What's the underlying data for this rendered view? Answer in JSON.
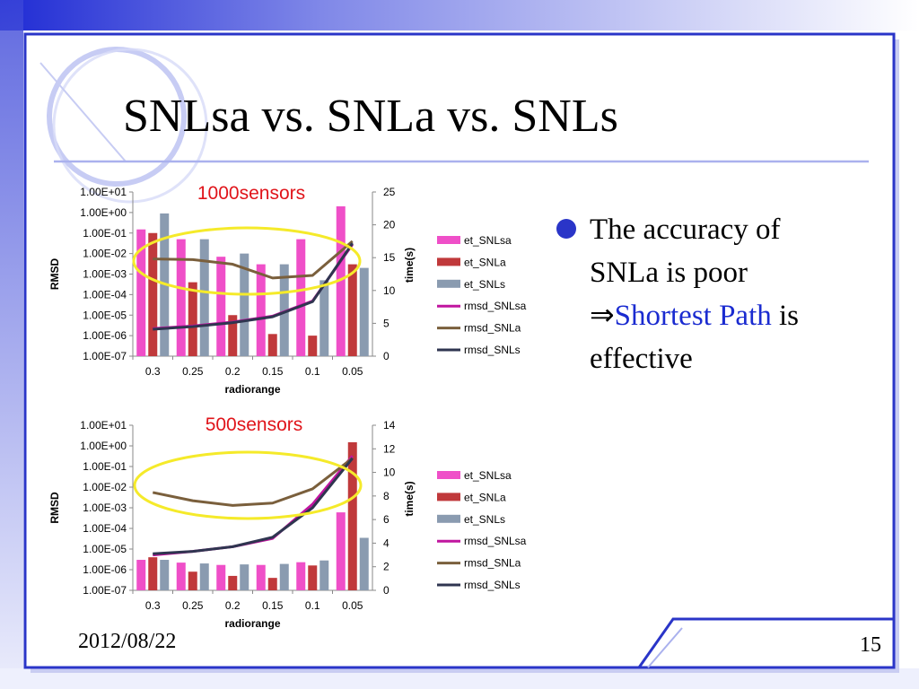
{
  "slide": {
    "title": "SNLsa vs. SNLa vs. SNLs",
    "bullet": {
      "line1": "The accuracy of",
      "line2": "SNLa is poor",
      "arrow": "⇒",
      "highlight": "Shortest Path",
      "after_highlight": " is",
      "line4": "effective"
    },
    "date": "2012/08/22",
    "page_number": "15",
    "accent_color": "#1a2bd0"
  },
  "chart_data": [
    {
      "type": "bar",
      "title": "1000sensors",
      "categories": [
        "0.3",
        "0.25",
        "0.2",
        "0.15",
        "0.1",
        "0.05"
      ],
      "xlabel": "radiorange",
      "ylabel": "RMSD",
      "y2label": "time(s)",
      "y_scale": "log",
      "yticks": [
        "1.00E+01",
        "1.00E+00",
        "1.00E-01",
        "1.00E-02",
        "1.00E-03",
        "1.00E-04",
        "1.00E-05",
        "1.00E-06",
        "1.00E-07"
      ],
      "ylim_exp": [
        -7,
        1
      ],
      "y2ticks": [
        "25",
        "20",
        "15",
        "10",
        "5",
        "0"
      ],
      "y2lim": [
        0,
        25
      ],
      "legend_position": "right",
      "bar_series": [
        {
          "name": "et_SNLsa",
          "color": "#ef4fc8",
          "values": [
            0.15,
            0.05,
            0.007,
            0.003,
            0.05,
            2.0
          ]
        },
        {
          "name": "et_SNLa",
          "color": "#c0393b",
          "values": [
            0.1,
            0.0004,
            1e-05,
            1.2e-06,
            1e-06,
            0.003
          ]
        },
        {
          "name": "et_SNLs",
          "color": "#8a9bb0",
          "values": [
            0.9,
            0.05,
            0.01,
            0.003,
            0.0005,
            0.002
          ]
        }
      ],
      "line_series": [
        {
          "name": "rmsd_SNLsa",
          "color": "#c0159f",
          "values": [
            4.2,
            4.6,
            5.2,
            6.1,
            8.4,
            17.0
          ]
        },
        {
          "name": "rmsd_SNLa",
          "color": "#7a5f3c",
          "values": [
            14.8,
            14.7,
            14.0,
            11.9,
            12.3,
            17.5
          ]
        },
        {
          "name": "rmsd_SNLs",
          "color": "#2f3550",
          "values": [
            4.1,
            4.5,
            5.1,
            6.0,
            8.3,
            17.2
          ]
        }
      ],
      "highlight_ellipse_color": "#f5ea2a"
    },
    {
      "type": "bar",
      "title": "500sensors",
      "categories": [
        "0.3",
        "0.25",
        "0.2",
        "0.15",
        "0.1",
        "0.05"
      ],
      "xlabel": "radiorange",
      "ylabel": "RMSD",
      "y2label": "time(s)",
      "y_scale": "log",
      "yticks": [
        "1.00E+01",
        "1.00E+00",
        "1.00E-01",
        "1.00E-02",
        "1.00E-03",
        "1.00E-04",
        "1.00E-05",
        "1.00E-06",
        "1.00E-07"
      ],
      "ylim_exp": [
        -7,
        1
      ],
      "y2ticks": [
        "14",
        "12",
        "10",
        "8",
        "6",
        "4",
        "2",
        "0"
      ],
      "y2lim": [
        0,
        14
      ],
      "legend_position": "right",
      "bar_series": [
        {
          "name": "et_SNLsa",
          "color": "#ef4fc8",
          "values": [
            3e-06,
            2.2e-06,
            1.7e-06,
            1.7e-06,
            2.3e-06,
            0.0006
          ]
        },
        {
          "name": "et_SNLa",
          "color": "#c0393b",
          "values": [
            4e-06,
            8e-07,
            5e-07,
            4e-07,
            1.6e-06,
            1.5
          ]
        },
        {
          "name": "et_SNLs",
          "color": "#8a9bb0",
          "values": [
            3e-06,
            2e-06,
            1.8e-06,
            1.9e-06,
            2.8e-06,
            3.5e-05
          ]
        }
      ],
      "line_series": [
        {
          "name": "rmsd_SNLsa",
          "color": "#c0159f",
          "values": [
            3.0,
            3.3,
            3.7,
            4.4,
            7.3,
            11.4
          ]
        },
        {
          "name": "rmsd_SNLa",
          "color": "#7a5f3c",
          "values": [
            8.3,
            7.6,
            7.2,
            7.4,
            8.6,
            11.2
          ]
        },
        {
          "name": "rmsd_SNLs",
          "color": "#2f3550",
          "values": [
            3.1,
            3.3,
            3.7,
            4.5,
            7.0,
            11.2
          ]
        }
      ],
      "highlight_ellipse_color": "#f5ea2a"
    }
  ]
}
